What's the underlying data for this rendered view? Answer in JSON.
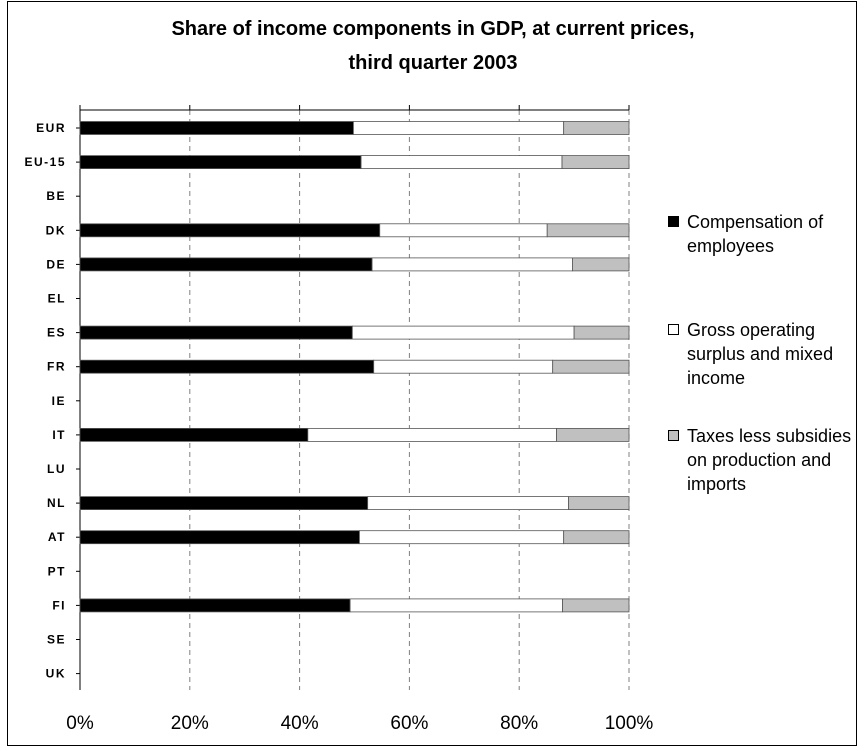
{
  "chart_data": {
    "type": "bar",
    "orientation": "horizontal",
    "stacked": true,
    "title": "Share of income components in GDP, at current prices,",
    "subtitle": "third quarter 2003",
    "categories": [
      "EUR",
      "EU-15",
      "BE",
      "DK",
      "DE",
      "EL",
      "ES",
      "FR",
      "IE",
      "IT",
      "LU",
      "NL",
      "AT",
      "PT",
      "FI",
      "SE",
      "UK"
    ],
    "series": [
      {
        "name": "Compensation of employees",
        "color": "#000000",
        "values": [
          49.8,
          51.2,
          null,
          54.6,
          53.2,
          null,
          49.6,
          53.5,
          null,
          41.5,
          null,
          52.4,
          50.9,
          null,
          49.2,
          null,
          null
        ]
      },
      {
        "name": "Gross operating surplus and mixed income",
        "color": "#ffffff",
        "values": [
          38.3,
          36.6,
          null,
          30.5,
          36.5,
          null,
          40.4,
          32.6,
          null,
          45.3,
          null,
          36.6,
          37.2,
          null,
          38.7,
          null,
          null
        ]
      },
      {
        "name": "Taxes less subsidies on production and imports",
        "color": "#c0c0c0",
        "values": [
          11.9,
          12.2,
          null,
          14.9,
          10.3,
          null,
          10.0,
          13.9,
          null,
          13.2,
          null,
          11.0,
          11.9,
          null,
          12.1,
          null,
          null
        ]
      }
    ],
    "x_ticks": [
      "0%",
      "20%",
      "40%",
      "60%",
      "80%",
      "100%"
    ],
    "xlim": [
      0,
      100
    ],
    "grid": "vertical dashed",
    "legend_position": "right"
  },
  "legend": [
    {
      "label": "Compensation of employees",
      "color": "#000000"
    },
    {
      "label": "Gross operating surplus and mixed income",
      "color": "#ffffff"
    },
    {
      "label": "Taxes less subsidies on production and imports",
      "color": "#c0c0c0"
    }
  ]
}
